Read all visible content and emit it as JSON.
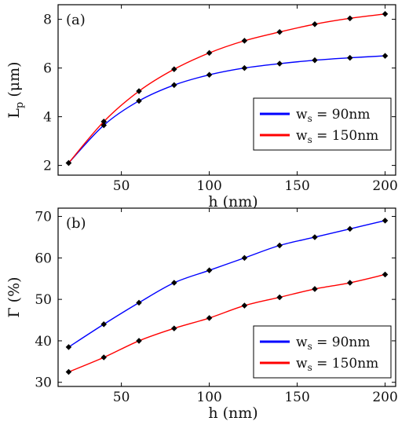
{
  "chart_data": [
    {
      "type": "line",
      "panel_label": "(a)",
      "xlabel": "h (nm)",
      "ylabel": "Lp (μm)",
      "ylabel_main": "L",
      "ylabel_sub": "p",
      "ylabel_unit": "(μm)",
      "xlim": [
        14,
        206
      ],
      "ylim": [
        1.6,
        8.6
      ],
      "xticks": [
        50,
        100,
        150,
        200
      ],
      "yticks": [
        2,
        4,
        6,
        8
      ],
      "grid": false,
      "legend_position": "lower-right",
      "series": [
        {
          "name": "ws = 90nm",
          "name_main": "w",
          "name_sub": "s",
          "name_rest": " = 90nm",
          "color": "#0000ff",
          "x": [
            20,
            40,
            60,
            80,
            100,
            120,
            140,
            160,
            180,
            200
          ],
          "y": [
            2.1,
            3.65,
            4.65,
            5.3,
            5.72,
            6.0,
            6.18,
            6.32,
            6.42,
            6.5
          ]
        },
        {
          "name": "ws = 150nm",
          "name_main": "w",
          "name_sub": "s",
          "name_rest": " = 150nm",
          "color": "#ff0000",
          "x": [
            20,
            40,
            60,
            80,
            100,
            120,
            140,
            160,
            180,
            200
          ],
          "y": [
            2.1,
            3.8,
            5.05,
            5.95,
            6.62,
            7.12,
            7.48,
            7.8,
            8.04,
            8.22
          ]
        }
      ]
    },
    {
      "type": "line",
      "panel_label": "(b)",
      "xlabel": "h (nm)",
      "ylabel": "Γ (%)",
      "xlim": [
        14,
        206
      ],
      "ylim": [
        29,
        72
      ],
      "xticks": [
        50,
        100,
        150,
        200
      ],
      "yticks": [
        30,
        40,
        50,
        60,
        70
      ],
      "grid": false,
      "legend_position": "lower-right",
      "series": [
        {
          "name": "ws = 90nm",
          "name_main": "w",
          "name_sub": "s",
          "name_rest": " = 90nm",
          "color": "#0000ff",
          "x": [
            20,
            40,
            60,
            80,
            100,
            120,
            140,
            160,
            180,
            200
          ],
          "y": [
            38.5,
            44.0,
            49.2,
            54.0,
            57.0,
            60.0,
            63.0,
            65.0,
            67.0,
            69.0
          ]
        },
        {
          "name": "ws = 150nm",
          "name_main": "w",
          "name_sub": "s",
          "name_rest": " = 150nm",
          "color": "#ff0000",
          "x": [
            20,
            40,
            60,
            80,
            100,
            120,
            140,
            160,
            180,
            200
          ],
          "y": [
            32.5,
            36.0,
            40.0,
            43.0,
            45.5,
            48.5,
            50.5,
            52.5,
            54.0,
            56.0
          ]
        }
      ]
    }
  ]
}
